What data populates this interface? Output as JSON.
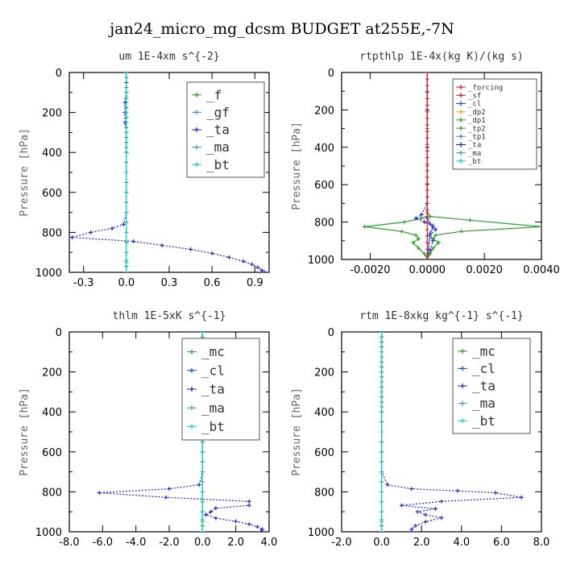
{
  "figure": {
    "title": "jan24_micro_mg_dcsm  BUDGET at255E,-7N"
  },
  "colors": {
    "forcing": "#e0202a",
    "sf": "#e0202a",
    "cl": "#1a4fd6",
    "dp2": "#e8b020",
    "dp1": "#2aa02a",
    "tp2": "#2aa02a",
    "tp1": "#4a8ad0",
    "ta": "#2020d0",
    "ma": "#3aa0c0",
    "bt": "#10d0e0",
    "f": "#2aa02a",
    "gf": "#4a8ad0",
    "mc": "#2aa02a"
  },
  "chart_data": [
    {
      "type": "line",
      "title": "um   1E-4xm s^{-2}",
      "ylabel": "Pressure [hPa]",
      "xlim": [
        -0.4,
        1.0
      ],
      "ylim": [
        1000,
        0
      ],
      "xticks": [
        -0.3,
        0.0,
        0.3,
        0.6,
        0.9
      ],
      "xtick_labels": [
        "-0.3",
        "0.0",
        "0.3",
        "0.6",
        "0.9"
      ],
      "yticks": [
        0,
        200,
        400,
        600,
        800,
        1000
      ],
      "legend": {
        "position": "top-right",
        "size": "large",
        "entries": [
          "_f",
          "_gf",
          "_ta",
          "_ma",
          "_bt"
        ]
      },
      "series": [
        {
          "name": "_f",
          "style": "f",
          "x": [
            0,
            0,
            0,
            0,
            0,
            0,
            0,
            0,
            0,
            0,
            0,
            0,
            0,
            0,
            0,
            0,
            0,
            0,
            0,
            0,
            0,
            0,
            0,
            0,
            0,
            0,
            0,
            0,
            0,
            0
          ],
          "y": [
            0,
            25,
            50,
            75,
            100,
            125,
            150,
            175,
            200,
            225,
            250,
            275,
            300,
            325,
            350,
            375,
            400,
            450,
            500,
            550,
            600,
            650,
            700,
            750,
            800,
            850,
            900,
            940,
            970,
            1000
          ]
        },
        {
          "name": "_ta",
          "style": "ta",
          "x": [
            0,
            0,
            0,
            -0.01,
            -0.01,
            -0.01,
            0,
            0,
            0,
            0,
            0,
            -0.02,
            -0.1,
            -0.25,
            -0.38,
            0.05,
            0.25,
            0.45,
            0.6,
            0.72,
            0.82,
            0.88,
            0.92,
            0.95,
            0.97
          ],
          "y": [
            0,
            50,
            100,
            150,
            200,
            250,
            300,
            400,
            500,
            600,
            700,
            760,
            780,
            800,
            825,
            845,
            865,
            885,
            905,
            925,
            945,
            960,
            975,
            990,
            1000
          ]
        },
        {
          "name": "_bt",
          "style": "bt",
          "x": [
            0,
            0,
            0,
            0,
            0,
            0,
            0,
            0,
            0,
            0,
            0,
            0
          ],
          "y": [
            0,
            100,
            200,
            300,
            400,
            500,
            600,
            700,
            800,
            900,
            950,
            1000
          ]
        }
      ]
    },
    {
      "type": "line",
      "title": "rtpthlp   1E-4x(kg K)/(kg s)",
      "ylabel": "Pressure [hPa]",
      "xlim": [
        -0.003,
        0.004
      ],
      "ylim": [
        1000,
        0
      ],
      "xticks": [
        -0.002,
        0.0,
        0.002,
        0.004
      ],
      "xtick_labels": [
        "-0.0020",
        "0.0000",
        "0.0020",
        "0.0040"
      ],
      "yticks": [
        0,
        200,
        400,
        600,
        800,
        1000
      ],
      "legend": {
        "position": "top-right",
        "size": "small",
        "entries": [
          "_forcing",
          "_sf",
          "_cl",
          "_dp2",
          "_dp1",
          "_tp2",
          "_tp1",
          "_ta",
          "_ma",
          "_bt"
        ]
      },
      "series": [
        {
          "name": "_tp2",
          "style": "tp2",
          "x": [
            0,
            0,
            0,
            0,
            0,
            0,
            0,
            0,
            0,
            0.0001,
            0.0015,
            0.004,
            0.0012,
            0.0003,
            0.0002,
            0.0004,
            0.0002,
            0.0001,
            0
          ],
          "y": [
            0,
            100,
            200,
            300,
            400,
            500,
            600,
            700,
            750,
            770,
            790,
            825,
            850,
            870,
            890,
            910,
            940,
            970,
            1000
          ]
        },
        {
          "name": "_dp1",
          "style": "dp1",
          "x": [
            0,
            0,
            0,
            0,
            0,
            0,
            0,
            -0.0002,
            -0.0008,
            -0.0022,
            -0.0009,
            -0.0004,
            -0.0003,
            -0.0005,
            -0.0003,
            -0.0001,
            0
          ],
          "y": [
            0,
            200,
            400,
            600,
            700,
            750,
            770,
            780,
            800,
            825,
            850,
            870,
            890,
            910,
            940,
            970,
            1000
          ]
        },
        {
          "name": "_ta",
          "style": "ta",
          "x": [
            0,
            0,
            0,
            0,
            -0.0002,
            -0.0004,
            -0.0001,
            0.0002,
            0.0003,
            0.0001,
            0.0002,
            0.0001,
            0
          ],
          "y": [
            0,
            200,
            400,
            700,
            760,
            780,
            800,
            820,
            840,
            870,
            900,
            950,
            1000
          ]
        },
        {
          "name": "_cl",
          "style": "cl",
          "x": [
            0,
            0,
            0,
            0.0001,
            0.0002,
            0.0001,
            0
          ],
          "y": [
            0,
            400,
            780,
            810,
            830,
            860,
            1000
          ]
        },
        {
          "name": "_forcing",
          "style": "forcing",
          "x": [
            0,
            0,
            0,
            0,
            0,
            0,
            0,
            0,
            0,
            0,
            0,
            0,
            0,
            0,
            0,
            0,
            0,
            0,
            0,
            0,
            0,
            0,
            0,
            0,
            0,
            0,
            0,
            0,
            0,
            0
          ],
          "y": [
            0,
            35,
            70,
            105,
            140,
            175,
            210,
            245,
            280,
            315,
            350,
            385,
            420,
            455,
            490,
            525,
            560,
            595,
            630,
            665,
            700,
            735,
            770,
            805,
            840,
            875,
            910,
            945,
            980,
            1000
          ]
        }
      ]
    },
    {
      "type": "line",
      "title": "thlm   1E-5xK s^{-1}",
      "ylabel": "Pressure [hPa]",
      "xlim": [
        -8.0,
        4.0
      ],
      "ylim": [
        1000,
        0
      ],
      "xticks": [
        -8,
        -6,
        -4,
        -2,
        0,
        2,
        4
      ],
      "xtick_labels": [
        "-8.0",
        "-6.0",
        "-4.0",
        "-2.0",
        "0.0",
        "2.0",
        "4.0"
      ],
      "yticks": [
        0,
        200,
        400,
        600,
        800,
        1000
      ],
      "legend": {
        "position": "top-center",
        "size": "large",
        "entries": [
          "_mc",
          "_cl",
          "_ta",
          "_ma",
          "_bt"
        ]
      },
      "series": [
        {
          "name": "_mc",
          "style": "mc",
          "x": [
            0,
            0,
            0,
            0,
            0,
            0,
            0,
            0,
            0,
            0,
            0,
            0,
            0,
            0,
            0,
            0,
            0,
            0,
            0,
            0,
            0,
            0,
            0,
            0,
            0,
            0,
            0,
            0,
            0,
            0
          ],
          "y": [
            0,
            25,
            50,
            75,
            100,
            125,
            150,
            175,
            200,
            225,
            250,
            275,
            300,
            325,
            350,
            375,
            400,
            450,
            500,
            550,
            600,
            650,
            700,
            750,
            800,
            850,
            900,
            940,
            970,
            1000
          ]
        },
        {
          "name": "_ta",
          "style": "ta",
          "x": [
            0,
            0,
            0,
            0,
            0,
            -0.2,
            -2.0,
            -6.2,
            -2.2,
            2.8,
            2.8,
            0.8,
            0.5,
            0.2,
            0.8,
            2.0,
            2.8,
            3.3,
            3.6,
            3.5
          ],
          "y": [
            0,
            200,
            400,
            600,
            700,
            765,
            785,
            805,
            828,
            848,
            868,
            882,
            900,
            915,
            932,
            948,
            962,
            975,
            988,
            1000
          ]
        },
        {
          "name": "_bt",
          "style": "bt",
          "x": [
            0,
            0,
            0,
            0,
            0,
            0,
            0,
            0,
            0,
            0,
            0,
            0
          ],
          "y": [
            0,
            100,
            200,
            300,
            400,
            500,
            600,
            700,
            800,
            900,
            950,
            1000
          ]
        }
      ]
    },
    {
      "type": "line",
      "title": "rtm   1E-8xkg kg^{-1} s^{-1}",
      "ylabel": "Pressure [hPa]",
      "xlim": [
        -2.0,
        8.0
      ],
      "ylim": [
        1000,
        0
      ],
      "xticks": [
        -2,
        0,
        2,
        4,
        6,
        8
      ],
      "xtick_labels": [
        "-2.0",
        "0.0",
        "2.0",
        "4.0",
        "6.0",
        "8.0"
      ],
      "yticks": [
        0,
        200,
        400,
        600,
        800,
        1000
      ],
      "legend": {
        "position": "top-right",
        "size": "large",
        "entries": [
          "_mc",
          "_cl",
          "_ta",
          "_ma",
          "_bt"
        ]
      },
      "series": [
        {
          "name": "_mc",
          "style": "mc",
          "x": [
            0,
            0,
            0,
            0,
            0,
            0,
            0,
            0,
            0,
            0,
            0,
            0,
            0,
            0,
            0,
            0,
            0,
            0,
            0,
            0,
            0,
            0,
            0,
            0,
            0,
            0,
            0,
            0,
            0,
            0
          ],
          "y": [
            0,
            25,
            50,
            75,
            100,
            125,
            150,
            175,
            200,
            225,
            250,
            275,
            300,
            325,
            350,
            375,
            400,
            450,
            500,
            550,
            600,
            650,
            700,
            750,
            800,
            850,
            900,
            940,
            970,
            1000
          ]
        },
        {
          "name": "_ta",
          "style": "ta",
          "x": [
            0,
            0,
            0,
            0,
            0,
            0.3,
            1.5,
            3.8,
            5.7,
            7.0,
            3.0,
            1.0,
            2.7,
            1.8,
            2.2,
            3.0,
            2.2,
            1.7,
            1.5,
            1.5
          ],
          "y": [
            0,
            200,
            400,
            600,
            700,
            765,
            785,
            795,
            805,
            828,
            848,
            868,
            885,
            900,
            915,
            930,
            950,
            970,
            988,
            1000
          ]
        },
        {
          "name": "_bt",
          "style": "bt",
          "x": [
            0,
            0,
            0,
            0,
            0,
            0,
            0,
            0,
            0,
            0,
            0,
            0
          ],
          "y": [
            0,
            100,
            200,
            300,
            400,
            500,
            600,
            700,
            800,
            900,
            950,
            1000
          ]
        }
      ]
    }
  ]
}
